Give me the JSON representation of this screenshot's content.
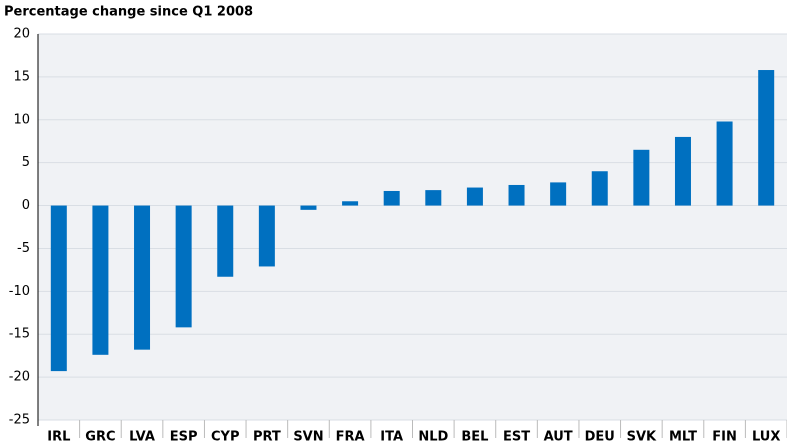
{
  "chart_data": {
    "type": "bar",
    "title": "Percentage change since Q1 2008",
    "categories": [
      "IRL",
      "GRC",
      "LVA",
      "ESP",
      "CYP",
      "PRT",
      "SVN",
      "FRA",
      "ITA",
      "NLD",
      "BEL",
      "EST",
      "AUT",
      "DEU",
      "SVK",
      "MLT",
      "FIN",
      "LUX"
    ],
    "values": [
      -19.3,
      -17.4,
      -16.8,
      -14.2,
      -8.3,
      -7.1,
      -0.5,
      0.5,
      1.7,
      1.8,
      2.1,
      2.4,
      2.7,
      4.0,
      6.5,
      8.0,
      9.8,
      15.8
    ],
    "color": "#0070c0",
    "ylim": [
      -25,
      20
    ],
    "yticks": [
      -25,
      -20,
      -15,
      -10,
      -5,
      0,
      5,
      10,
      15,
      20
    ],
    "grid": true
  }
}
